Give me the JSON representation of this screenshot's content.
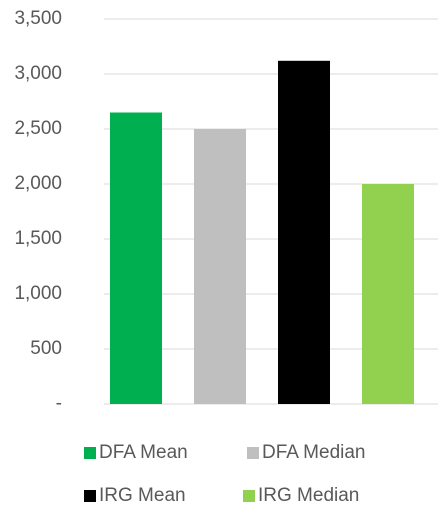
{
  "chart_data": {
    "type": "bar",
    "categories": [
      null
    ],
    "series": [
      {
        "name": "DFA Mean",
        "color": "#00b050",
        "values": [
          2650
        ]
      },
      {
        "name": "DFA Median",
        "color": "#bfbfbf",
        "values": [
          2500
        ]
      },
      {
        "name": "IRG Mean",
        "color": "#000000",
        "values": [
          3120
        ]
      },
      {
        "name": "IRG Median",
        "color": "#92d050",
        "values": [
          2000
        ]
      }
    ],
    "ylim": [
      0,
      3500
    ],
    "yticks": [
      {
        "value": 0,
        "label": "-"
      },
      500,
      {
        "value": 1000,
        "label": "1,000"
      },
      {
        "value": 1500,
        "label": "1,500"
      },
      {
        "value": 2000,
        "label": "2,000"
      },
      {
        "value": 2500,
        "label": "2,500"
      },
      {
        "value": 3000,
        "label": "3,000"
      },
      {
        "value": 3500,
        "label": "3,500"
      }
    ],
    "grid": true,
    "legend": "bottom"
  }
}
